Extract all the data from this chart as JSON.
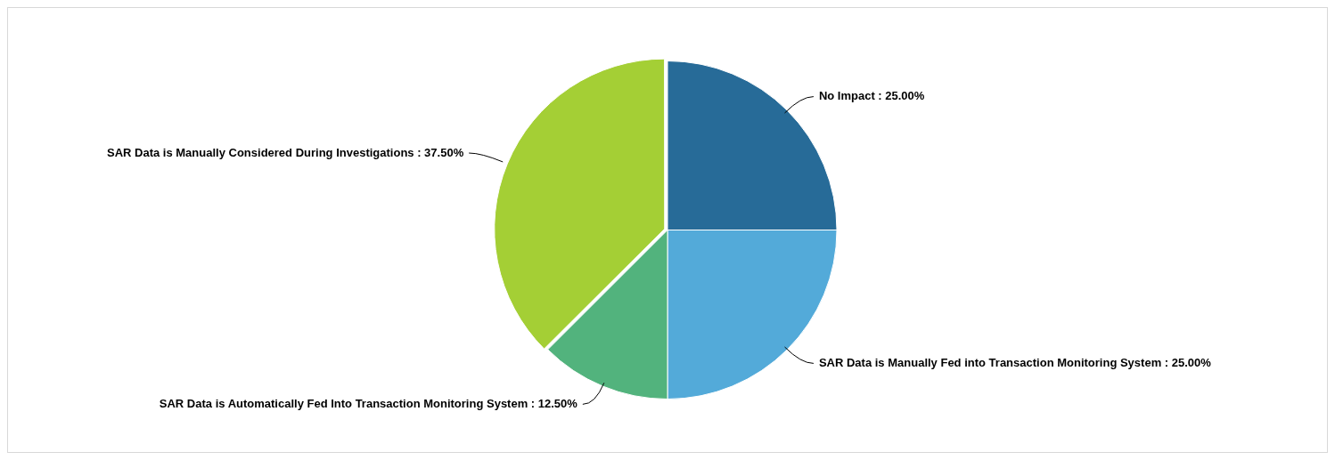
{
  "chart_data": {
    "type": "pie",
    "categories": [
      "No Impact",
      "SAR Data is Manually Fed into Transaction Monitoring System",
      "SAR Data is Automatically Fed Into Transaction Monitoring System",
      "SAR Data is Manually Considered During Investigations"
    ],
    "values": [
      25,
      25,
      12.5,
      37.5
    ],
    "value_labels": [
      "25.00%",
      "25.00%",
      "12.50%",
      "37.50%"
    ],
    "colors": [
      "#276b98",
      "#53aad9",
      "#52b37d",
      "#a4cf35"
    ],
    "legend": false
  }
}
